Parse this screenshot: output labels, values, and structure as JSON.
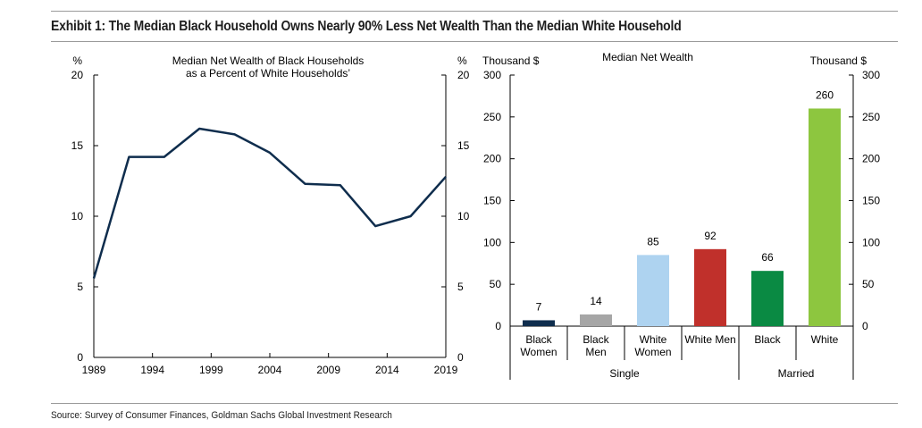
{
  "title": "Exhibit 1: The Median Black Household Owns Nearly 90% Less Net Wealth Than the Median White Household",
  "source": "Source: Survey of Consumer Finances, Goldman Sachs Global Investment Research",
  "chart_data": [
    {
      "type": "line",
      "title_line1": "Median Net Wealth of Black Households",
      "title_line2": "as a Percent of White Households’",
      "ylabel_left": "%",
      "ylabel_right": "%",
      "x": [
        1989,
        1992,
        1995,
        1998,
        2001,
        2004,
        2007,
        2010,
        2013,
        2016,
        2019
      ],
      "values": [
        5.6,
        14.2,
        14.2,
        16.2,
        15.8,
        14.5,
        12.3,
        12.2,
        9.3,
        10.0,
        12.8
      ],
      "xticks": [
        "1989",
        "1994",
        "1999",
        "2004",
        "2009",
        "2014",
        "2019"
      ],
      "yticks": [
        "0",
        "5",
        "10",
        "15",
        "20"
      ],
      "xlim": [
        1989,
        2019
      ],
      "ylim": [
        0,
        20
      ],
      "color": "#0f2d4d",
      "grid": false
    },
    {
      "type": "bar",
      "title": "Median Net Wealth",
      "ylabel_left": "Thousand $",
      "ylabel_right": "Thousand $",
      "categories": [
        {
          "line1": "Black",
          "line2": "Women"
        },
        {
          "line1": "Black",
          "line2": "Men"
        },
        {
          "line1": "White",
          "line2": "Women"
        },
        {
          "line1": "White Men",
          "line2": ""
        },
        {
          "line1": "Black",
          "line2": ""
        },
        {
          "line1": "White",
          "line2": ""
        }
      ],
      "values": [
        7,
        14,
        85,
        92,
        66,
        260
      ],
      "value_labels": [
        "7",
        "14",
        "85",
        "92",
        "66",
        "260"
      ],
      "colors": [
        "#0f2d4d",
        "#a6a6a6",
        "#aed3f0",
        "#c0302b",
        "#0a8a43",
        "#8dc63f"
      ],
      "groups": [
        {
          "label": "Single",
          "from": 0,
          "to": 3
        },
        {
          "label": "Married",
          "from": 4,
          "to": 5
        }
      ],
      "yticks": [
        "0",
        "50",
        "100",
        "150",
        "200",
        "250",
        "300"
      ],
      "ylim": [
        0,
        300
      ],
      "grid": false
    }
  ]
}
